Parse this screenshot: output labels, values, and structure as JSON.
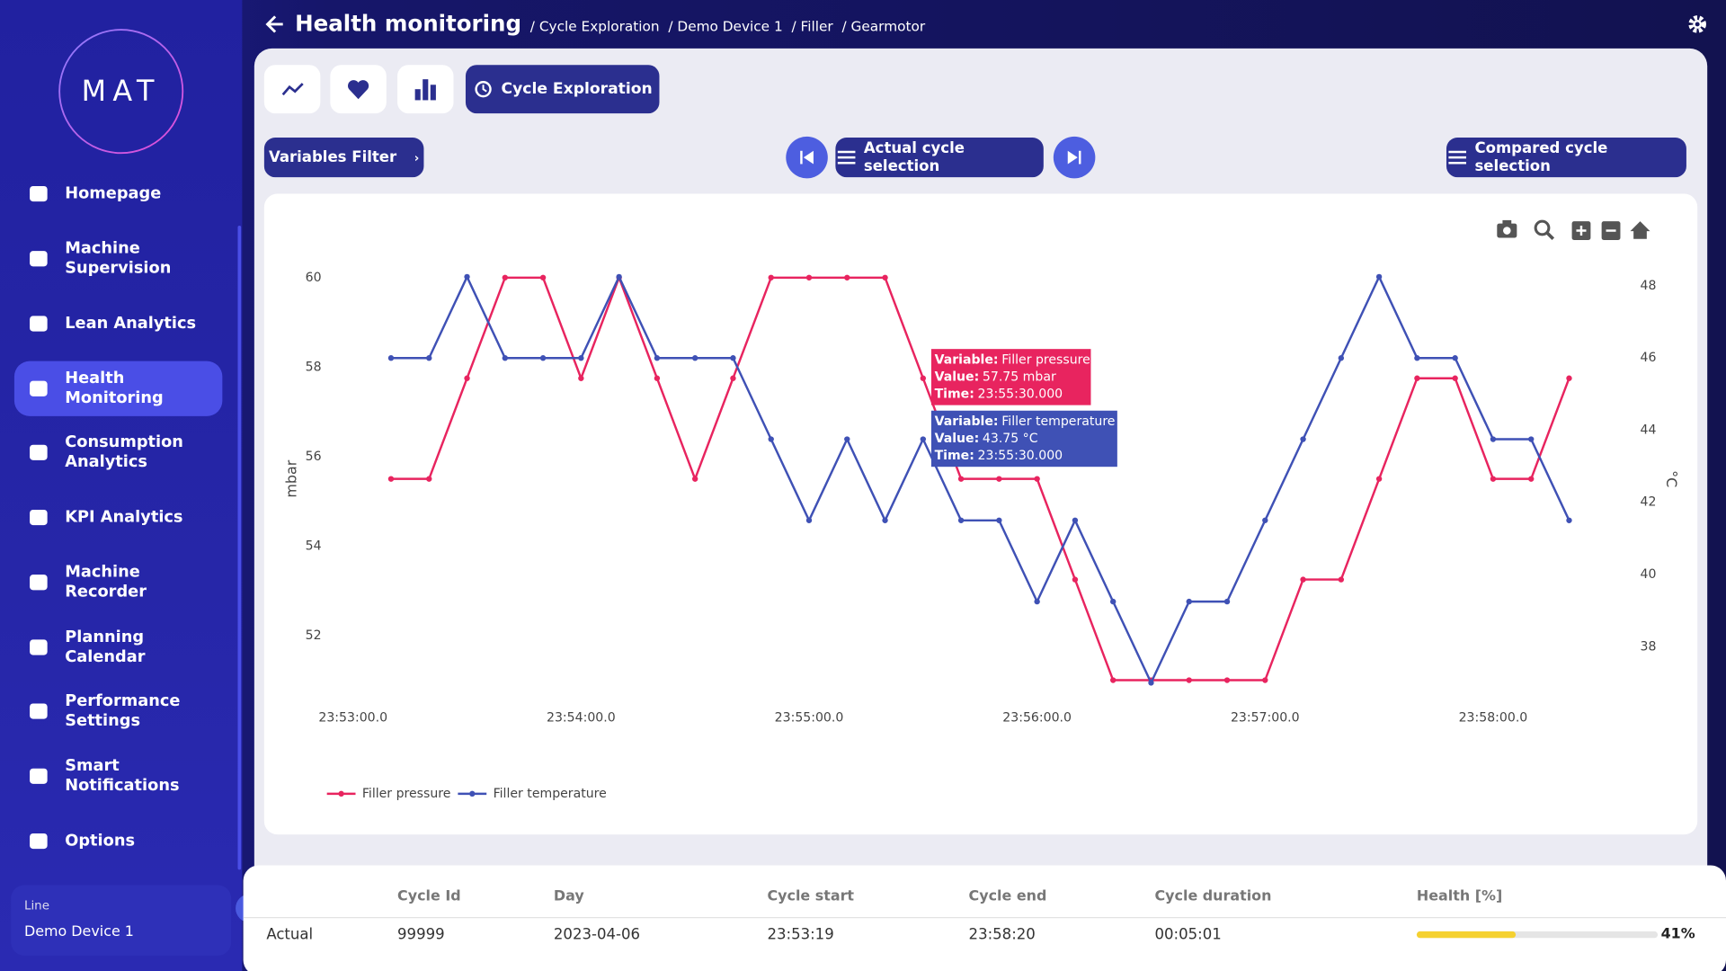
{
  "sidebar": {
    "logo": "MAT",
    "nav": [
      "Homepage",
      "Machine Supervision",
      "Lean Analytics",
      "Health Monitoring",
      "Consumption Analytics",
      "KPI Analytics",
      "Machine Recorder",
      "Planning Calendar",
      "Performance Settings",
      "Smart Notifications",
      "Options"
    ],
    "line_label": "Line",
    "line_value": "Demo Device 1"
  },
  "header": {
    "title": "Health monitoring",
    "breadcrumb": [
      "/ Cycle Exploration",
      "/ Demo Device 1",
      "/ Filler",
      "/ Gearmotor"
    ]
  },
  "toolbar": {
    "tab": "Cycle Exploration",
    "variables_filter": "Variables Filter",
    "actual": "Actual cycle selection",
    "compared": "Compared cycle selection"
  },
  "chart_data": {
    "type": "line",
    "ylabel": "mbar",
    "y2label": "°C",
    "x": [
      "23:53:10.0",
      "23:53:20.0",
      "23:53:30.0",
      "23:53:40.0",
      "23:53:50.0",
      "23:54:00.0",
      "23:54:10.0",
      "23:54:20.0",
      "23:54:30.0",
      "23:54:40.0",
      "23:54:50.0",
      "23:55:00.0",
      "23:55:10.0",
      "23:55:20.0",
      "23:55:30.0",
      "23:55:40.0",
      "23:55:50.0",
      "23:56:00.0",
      "23:56:10.0",
      "23:56:20.0",
      "23:56:30.0",
      "23:56:40.0",
      "23:56:50.0",
      "23:57:00.0",
      "23:57:10.0",
      "23:57:20.0",
      "23:57:30.0",
      "23:57:40.0",
      "23:57:50.0",
      "23:58:00.0",
      "23:58:10.0",
      "23:58:20.0"
    ],
    "series": [
      {
        "name": "Filler pressure",
        "color": "#e8245f",
        "axis": "y",
        "values": [
          55.5,
          55.5,
          57.75,
          60,
          60,
          57.75,
          60,
          57.75,
          55.5,
          57.75,
          60,
          60,
          60,
          60,
          57.75,
          55.5,
          55.5,
          55.5,
          53.25,
          51,
          51,
          51,
          51,
          51,
          53.25,
          53.25,
          55.5,
          57.75,
          57.75,
          55.5,
          55.5,
          57.75
        ]
      },
      {
        "name": "Filler temperature",
        "color": "#3f51b5",
        "axis": "y2",
        "values": [
          46,
          46,
          48.25,
          46,
          46,
          46,
          48.25,
          46,
          46,
          46,
          43.75,
          41.5,
          43.75,
          41.5,
          43.75,
          41.5,
          41.5,
          39.25,
          41.5,
          39.25,
          37,
          39.25,
          39.25,
          41.5,
          43.75,
          46,
          48.25,
          46,
          46,
          43.75,
          43.75,
          41.5
        ]
      }
    ],
    "xlim": [
      "23:52:54.0",
      "23:58:30.0"
    ],
    "xticks": [
      "23:53:00.0",
      "23:54:00.0",
      "23:55:00.0",
      "23:56:00.0",
      "23:57:00.0",
      "23:58:00.0"
    ],
    "ylim": [
      50.7,
      60.3
    ],
    "yticks": [
      52,
      54,
      56,
      58,
      60
    ],
    "y2lim": [
      36.7,
      48.6
    ],
    "y2ticks": [
      38,
      40,
      42,
      44,
      46,
      48
    ],
    "grid": false,
    "legend": "bottom-left",
    "tooltips": [
      {
        "color": "#e8245f",
        "lines": [
          [
            "Variable:",
            "Filler pressure"
          ],
          [
            "Value:",
            "57.75 mbar"
          ],
          [
            "Time:",
            "23:55:30.000"
          ]
        ]
      },
      {
        "color": "#3f51b5",
        "lines": [
          [
            "Variable:",
            "Filler temperature"
          ],
          [
            "Value:",
            "43.75 °C"
          ],
          [
            "Time:",
            "23:55:30.000"
          ]
        ]
      }
    ]
  },
  "table": {
    "columns": [
      "Cycle Id",
      "Day",
      "Cycle start",
      "Cycle end",
      "Cycle duration",
      "Health [%]"
    ],
    "rows": [
      [
        "Actual",
        "99999",
        "2023-04-06",
        "23:53:19",
        "23:58:20",
        "00:05:01"
      ]
    ],
    "health": {
      "value": 41,
      "label": "41%"
    }
  }
}
